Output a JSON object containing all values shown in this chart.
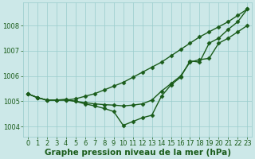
{
  "title": "Graphe pression niveau de la mer (hPa)",
  "bg_color": "#cce8e8",
  "plot_bg_color": "#cce8e8",
  "grid_color": "#99cccc",
  "line_color": "#1a5c1a",
  "xlim": [
    -0.5,
    23.5
  ],
  "ylim": [
    1003.6,
    1008.9
  ],
  "yticks": [
    1004,
    1005,
    1006,
    1007,
    1008
  ],
  "xticks": [
    0,
    1,
    2,
    3,
    4,
    5,
    6,
    7,
    8,
    9,
    10,
    11,
    12,
    13,
    14,
    15,
    16,
    17,
    18,
    19,
    20,
    21,
    22,
    23
  ],
  "series1": [
    1005.3,
    1005.15,
    1005.05,
    1005.05,
    1005.05,
    1005.1,
    1005.2,
    1005.3,
    1005.45,
    1005.6,
    1005.75,
    1005.95,
    1006.15,
    1006.35,
    1006.55,
    1006.8,
    1007.05,
    1007.3,
    1007.55,
    1007.75,
    1007.95,
    1008.15,
    1008.4,
    1008.65
  ],
  "series2": [
    1005.3,
    1005.15,
    1005.05,
    1005.05,
    1005.05,
    1005.0,
    1004.95,
    1004.9,
    1004.87,
    1004.85,
    1004.82,
    1004.85,
    1004.9,
    1005.05,
    1005.4,
    1005.7,
    1006.0,
    1006.55,
    1006.65,
    1006.7,
    1007.3,
    1007.5,
    1007.75,
    1008.0
  ],
  "series3": [
    1005.3,
    1005.15,
    1005.05,
    1005.05,
    1005.08,
    1005.0,
    1004.9,
    1004.82,
    1004.72,
    1004.6,
    1004.05,
    1004.2,
    1004.35,
    1004.45,
    1005.2,
    1005.65,
    1005.95,
    1006.6,
    1006.55,
    1007.3,
    1007.5,
    1007.85,
    1008.15,
    1008.65
  ],
  "marker": "D",
  "markersize": 2.5,
  "linewidth": 1.0,
  "xlabel_fontsize": 7.5,
  "tick_fontsize": 6.0,
  "label_color": "#1a5c1a"
}
